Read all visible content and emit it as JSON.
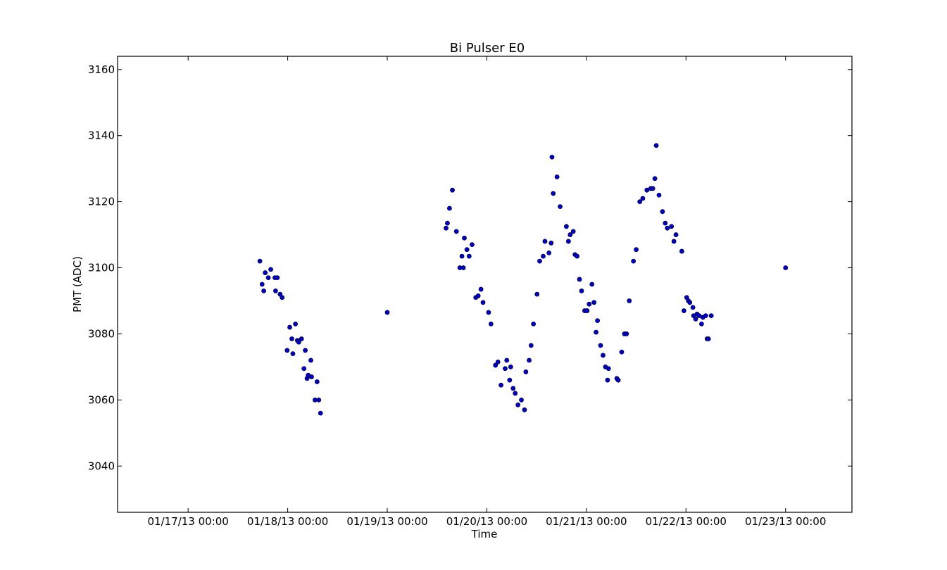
{
  "chart_data": {
    "type": "scatter",
    "title": "Bi Pulser E0",
    "xlabel": "Time",
    "ylabel": "PMT (ADC)",
    "x_axis_kind": "date",
    "xlim": [
      "2013-01-16T07:00",
      "2013-01-23T16:00"
    ],
    "ylim": [
      3026,
      3164
    ],
    "xticks": [
      {
        "date": "2013-01-17T00:00",
        "label": "01/17/13 00:00"
      },
      {
        "date": "2013-01-18T00:00",
        "label": "01/18/13 00:00"
      },
      {
        "date": "2013-01-19T00:00",
        "label": "01/19/13 00:00"
      },
      {
        "date": "2013-01-20T00:00",
        "label": "01/20/13 00:00"
      },
      {
        "date": "2013-01-21T00:00",
        "label": "01/21/13 00:00"
      },
      {
        "date": "2013-01-22T00:00",
        "label": "01/22/13 00:00"
      },
      {
        "date": "2013-01-23T00:00",
        "label": "01/23/13 00:00"
      }
    ],
    "yticks": [
      3040,
      3060,
      3080,
      3100,
      3120,
      3140,
      3160
    ],
    "grid": false,
    "marker_color": "#0000cc",
    "marker_edge_color": "#000033",
    "series": [
      {
        "points": [
          [
            "2013-01-17T17:18",
            3102
          ],
          [
            "2013-01-17T17:50",
            3095
          ],
          [
            "2013-01-17T18:14",
            3093
          ],
          [
            "2013-01-17T18:35",
            3098.5
          ],
          [
            "2013-01-17T19:20",
            3097
          ],
          [
            "2013-01-17T19:55",
            3099.5
          ],
          [
            "2013-01-17T20:55",
            3097
          ],
          [
            "2013-01-17T21:05",
            3093
          ],
          [
            "2013-01-17T21:30",
            3097
          ],
          [
            "2013-01-17T22:10",
            3092
          ],
          [
            "2013-01-17T22:40",
            3091
          ],
          [
            "2013-01-17T23:52",
            3075
          ],
          [
            "2013-01-18T00:30",
            3082
          ],
          [
            "2013-01-18T01:00",
            3078.5
          ],
          [
            "2013-01-18T01:15",
            3074
          ],
          [
            "2013-01-18T01:52",
            3083
          ],
          [
            "2013-01-18T02:20",
            3078
          ],
          [
            "2013-01-18T02:40",
            3077.5
          ],
          [
            "2013-01-18T03:20",
            3078.5
          ],
          [
            "2013-01-18T03:55",
            3069.5
          ],
          [
            "2013-01-18T04:15",
            3075
          ],
          [
            "2013-01-18T04:40",
            3066.5
          ],
          [
            "2013-01-18T04:57",
            3067.5
          ],
          [
            "2013-01-18T05:35",
            3072
          ],
          [
            "2013-01-18T05:45",
            3067
          ],
          [
            "2013-01-18T06:35",
            3060
          ],
          [
            "2013-01-18T07:05",
            3065.5
          ],
          [
            "2013-01-18T07:30",
            3060
          ],
          [
            "2013-01-18T07:55",
            3056
          ],
          [
            "2013-01-19T00:00",
            3086.5
          ],
          [
            "2013-01-19T14:10",
            3112
          ],
          [
            "2013-01-19T14:30",
            3113.5
          ],
          [
            "2013-01-19T15:00",
            3118
          ],
          [
            "2013-01-19T15:42",
            3123.5
          ],
          [
            "2013-01-19T16:40",
            3111
          ],
          [
            "2013-01-19T17:30",
            3100
          ],
          [
            "2013-01-19T18:00",
            3103.5
          ],
          [
            "2013-01-19T18:20",
            3100
          ],
          [
            "2013-01-19T18:35",
            3109
          ],
          [
            "2013-01-19T19:12",
            3105.5
          ],
          [
            "2013-01-19T19:44",
            3103.5
          ],
          [
            "2013-01-19T20:26",
            3107
          ],
          [
            "2013-01-19T21:20",
            3091
          ],
          [
            "2013-01-19T21:55",
            3091.5
          ],
          [
            "2013-01-19T22:35",
            3093.5
          ],
          [
            "2013-01-19T23:05",
            3089.5
          ],
          [
            "2013-01-20T00:25",
            3086.5
          ],
          [
            "2013-01-20T01:00",
            3083
          ],
          [
            "2013-01-20T02:05",
            3070.5
          ],
          [
            "2013-01-20T02:40",
            3071.5
          ],
          [
            "2013-01-20T03:25",
            3064.5
          ],
          [
            "2013-01-20T04:25",
            3069.5
          ],
          [
            "2013-01-20T04:48",
            3072
          ],
          [
            "2013-01-20T05:30",
            3066
          ],
          [
            "2013-01-20T05:45",
            3070
          ],
          [
            "2013-01-20T06:20",
            3063.5
          ],
          [
            "2013-01-20T06:50",
            3062
          ],
          [
            "2013-01-20T07:30",
            3058.5
          ],
          [
            "2013-01-20T08:20",
            3060
          ],
          [
            "2013-01-20T09:05",
            3057
          ],
          [
            "2013-01-20T09:24",
            3068.5
          ],
          [
            "2013-01-20T10:12",
            3072
          ],
          [
            "2013-01-20T10:40",
            3076.5
          ],
          [
            "2013-01-20T11:14",
            3083
          ],
          [
            "2013-01-20T12:06",
            3092
          ],
          [
            "2013-01-20T12:44",
            3102
          ],
          [
            "2013-01-20T13:35",
            3103.5
          ],
          [
            "2013-01-20T14:00",
            3108
          ],
          [
            "2013-01-20T14:58",
            3104.5
          ],
          [
            "2013-01-20T15:30",
            3107.5
          ],
          [
            "2013-01-20T15:42",
            3133.5
          ],
          [
            "2013-01-20T16:00",
            3122.5
          ],
          [
            "2013-01-20T16:55",
            3127.5
          ],
          [
            "2013-01-20T17:40",
            3118.5
          ],
          [
            "2013-01-20T19:10",
            3112.5
          ],
          [
            "2013-01-20T19:40",
            3108
          ],
          [
            "2013-01-20T20:05",
            3110
          ],
          [
            "2013-01-20T20:50",
            3111
          ],
          [
            "2013-01-20T21:15",
            3104
          ],
          [
            "2013-01-20T21:45",
            3103.5
          ],
          [
            "2013-01-20T22:20",
            3096.5
          ],
          [
            "2013-01-20T22:50",
            3093
          ],
          [
            "2013-01-20T23:35",
            3087
          ],
          [
            "2013-01-21T00:10",
            3087
          ],
          [
            "2013-01-21T00:40",
            3089
          ],
          [
            "2013-01-21T01:20",
            3095
          ],
          [
            "2013-01-21T01:50",
            3089.5
          ],
          [
            "2013-01-21T02:20",
            3080.5
          ],
          [
            "2013-01-21T02:40",
            3084
          ],
          [
            "2013-01-21T03:25",
            3076.5
          ],
          [
            "2013-01-21T04:00",
            3073.5
          ],
          [
            "2013-01-21T04:35",
            3070
          ],
          [
            "2013-01-21T05:06",
            3066
          ],
          [
            "2013-01-21T05:20",
            3069.5
          ],
          [
            "2013-01-21T07:20",
            3066.5
          ],
          [
            "2013-01-21T07:40",
            3066
          ],
          [
            "2013-01-21T08:30",
            3074.5
          ],
          [
            "2013-01-21T09:10",
            3080
          ],
          [
            "2013-01-21T09:40",
            3080
          ],
          [
            "2013-01-21T10:20",
            3090
          ],
          [
            "2013-01-21T11:20",
            3102
          ],
          [
            "2013-01-21T12:00",
            3105.5
          ],
          [
            "2013-01-21T12:52",
            3120
          ],
          [
            "2013-01-21T13:35",
            3121
          ],
          [
            "2013-01-21T14:35",
            3123.5
          ],
          [
            "2013-01-21T15:30",
            3124
          ],
          [
            "2013-01-21T16:00",
            3124
          ],
          [
            "2013-01-21T16:30",
            3127
          ],
          [
            "2013-01-21T16:50",
            3137
          ],
          [
            "2013-01-21T17:30",
            3122
          ],
          [
            "2013-01-21T18:20",
            3117
          ],
          [
            "2013-01-21T19:00",
            3113.5
          ],
          [
            "2013-01-21T19:30",
            3112
          ],
          [
            "2013-01-21T20:30",
            3112.5
          ],
          [
            "2013-01-21T21:05",
            3108
          ],
          [
            "2013-01-21T21:35",
            3110
          ],
          [
            "2013-01-21T23:00",
            3105
          ],
          [
            "2013-01-21T23:30",
            3087
          ],
          [
            "2013-01-22T00:10",
            3091
          ],
          [
            "2013-01-22T00:35",
            3090
          ],
          [
            "2013-01-22T00:55",
            3089.5
          ],
          [
            "2013-01-22T01:40",
            3088
          ],
          [
            "2013-01-22T01:50",
            3085.5
          ],
          [
            "2013-01-22T02:20",
            3084.5
          ],
          [
            "2013-01-22T02:40",
            3086
          ],
          [
            "2013-01-22T03:10",
            3085.5
          ],
          [
            "2013-01-22T03:45",
            3083
          ],
          [
            "2013-01-22T04:05",
            3085
          ],
          [
            "2013-01-22T04:45",
            3085.5
          ],
          [
            "2013-01-22T05:05",
            3078.5
          ],
          [
            "2013-01-22T05:25",
            3078.5
          ],
          [
            "2013-01-22T06:05",
            3085.5
          ],
          [
            "2013-01-23T00:00",
            3100
          ]
        ]
      }
    ]
  }
}
